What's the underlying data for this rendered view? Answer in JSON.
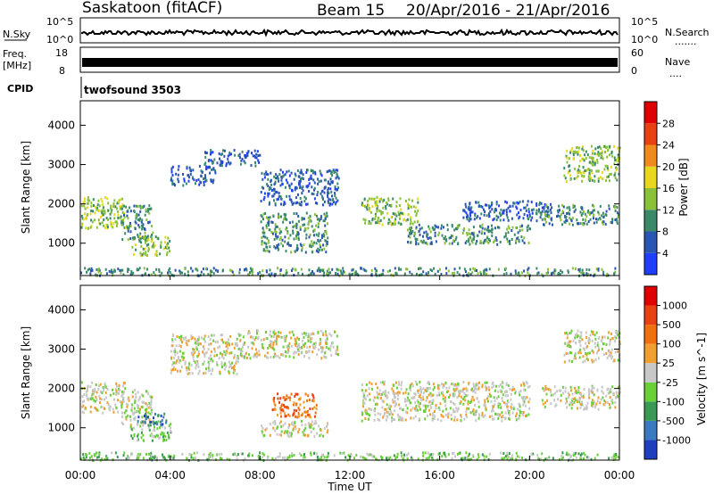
{
  "header": {
    "station": "Saskatoon (fitACF)",
    "beam": "Beam 15",
    "date_range": "20/Apr/2016 - 21/Apr/2016"
  },
  "strip": {
    "nsky_label": "N.Sky",
    "nsky_top": "10^5",
    "nsky_bottom": "10^0",
    "nsearch_label": "N.Search",
    "nsearch_top": "10^5",
    "nsearch_bottom": "10^0",
    "freq_label": "Freq.",
    "freq_unit": "[MHz]",
    "freq_top": "18",
    "freq_bottom": "8",
    "nave_label": "Nave",
    "nave_top": "60",
    "nave_bottom": "0",
    "cpid_label": "CPID",
    "cpid_value": "twofsound 3503"
  },
  "chart_data": [
    {
      "type": "heatmap",
      "panel": "power",
      "ylabel": "Slant Range [km]",
      "xlabel": "Time UT",
      "ylim": [
        200,
        4600
      ],
      "yticks": [
        "1000",
        "2000",
        "3000",
        "4000"
      ],
      "xticks": [
        "00:00",
        "04:00",
        "08:00",
        "12:00",
        "16:00",
        "20:00",
        "00:00"
      ],
      "xlim_hours": [
        0,
        24
      ],
      "colorbar": {
        "label": "Power [dB]",
        "ticks": [
          "4",
          "8",
          "12",
          "16",
          "20",
          "24",
          "28"
        ],
        "colors": [
          "#1f3fff",
          "#2a55b0",
          "#3a8a6a",
          "#8ac13a",
          "#e8d81c",
          "#f08a1c",
          "#e84010",
          "#e00000"
        ]
      },
      "regions": [
        {
          "t0": 0.0,
          "t1": 2.0,
          "r0": 1400,
          "r1": 2200,
          "level": 3
        },
        {
          "t0": 1.8,
          "t1": 3.2,
          "r0": 1100,
          "r1": 2000,
          "level": 2
        },
        {
          "t0": 2.2,
          "t1": 4.0,
          "r0": 700,
          "r1": 1200,
          "level": 3
        },
        {
          "t0": 4.0,
          "t1": 6.0,
          "r0": 2500,
          "r1": 3000,
          "level": 1
        },
        {
          "t0": 5.5,
          "t1": 8.0,
          "r0": 3000,
          "r1": 3400,
          "level": 1
        },
        {
          "t0": 8.0,
          "t1": 11.0,
          "r0": 800,
          "r1": 1800,
          "level": 2
        },
        {
          "t0": 8.0,
          "t1": 11.5,
          "r0": 2000,
          "r1": 2900,
          "level": 1
        },
        {
          "t0": 12.5,
          "t1": 15.0,
          "r0": 1500,
          "r1": 2200,
          "level": 3
        },
        {
          "t0": 14.5,
          "t1": 20.0,
          "r0": 1000,
          "r1": 1500,
          "level": 2
        },
        {
          "t0": 17.0,
          "t1": 21.0,
          "r0": 1600,
          "r1": 2100,
          "level": 1
        },
        {
          "t0": 20.5,
          "t1": 24.0,
          "r0": 1500,
          "r1": 2000,
          "level": 2
        },
        {
          "t0": 21.5,
          "t1": 24.0,
          "r0": 2600,
          "r1": 3500,
          "level": 3
        },
        {
          "t0": 0.0,
          "t1": 24.0,
          "r0": 200,
          "r1": 400,
          "level": 2
        }
      ]
    },
    {
      "type": "heatmap",
      "panel": "velocity",
      "ylabel": "Slant Range [km]",
      "xlabel": "Time UT",
      "ylim": [
        200,
        4600
      ],
      "yticks": [
        "1000",
        "2000",
        "3000",
        "4000"
      ],
      "xticks": [
        "00:00",
        "04:00",
        "08:00",
        "12:00",
        "16:00",
        "20:00",
        "00:00"
      ],
      "xlim_hours": [
        0,
        24
      ],
      "colorbar": {
        "label": "Velocity [m s^-1]",
        "ticks": [
          "1000",
          "500",
          "100",
          "25",
          "-25",
          "-100",
          "-500",
          "-1000"
        ],
        "colors": [
          "#1f3fbf",
          "#3a7ac0",
          "#3a9a55",
          "#6ad03a",
          "#c8c8c8",
          "#f0a030",
          "#f07010",
          "#e84010",
          "#e00000"
        ]
      },
      "regions": [
        {
          "t0": 0.0,
          "t1": 2.0,
          "r0": 1400,
          "r1": 2200,
          "level": 4
        },
        {
          "t0": 1.8,
          "t1": 3.2,
          "r0": 1100,
          "r1": 2000,
          "level": 4
        },
        {
          "t0": 2.2,
          "t1": 4.0,
          "r0": 700,
          "r1": 1200,
          "level": 3
        },
        {
          "t0": 2.5,
          "t1": 3.8,
          "r0": 1100,
          "r1": 1400,
          "level": 1
        },
        {
          "t0": 4.0,
          "t1": 7.0,
          "r0": 2400,
          "r1": 3400,
          "level": 4
        },
        {
          "t0": 8.0,
          "t1": 11.0,
          "r0": 800,
          "r1": 1200,
          "level": 4
        },
        {
          "t0": 8.5,
          "t1": 10.5,
          "r0": 1300,
          "r1": 1900,
          "level": 6
        },
        {
          "t0": 7.0,
          "t1": 11.5,
          "r0": 2800,
          "r1": 3500,
          "level": 4
        },
        {
          "t0": 12.5,
          "t1": 20.0,
          "r0": 1200,
          "r1": 2200,
          "level": 4
        },
        {
          "t0": 20.5,
          "t1": 24.0,
          "r0": 1500,
          "r1": 2100,
          "level": 4
        },
        {
          "t0": 21.5,
          "t1": 24.0,
          "r0": 2700,
          "r1": 3500,
          "level": 4
        },
        {
          "t0": 0.0,
          "t1": 24.0,
          "r0": 200,
          "r1": 400,
          "level": 3
        }
      ]
    }
  ]
}
